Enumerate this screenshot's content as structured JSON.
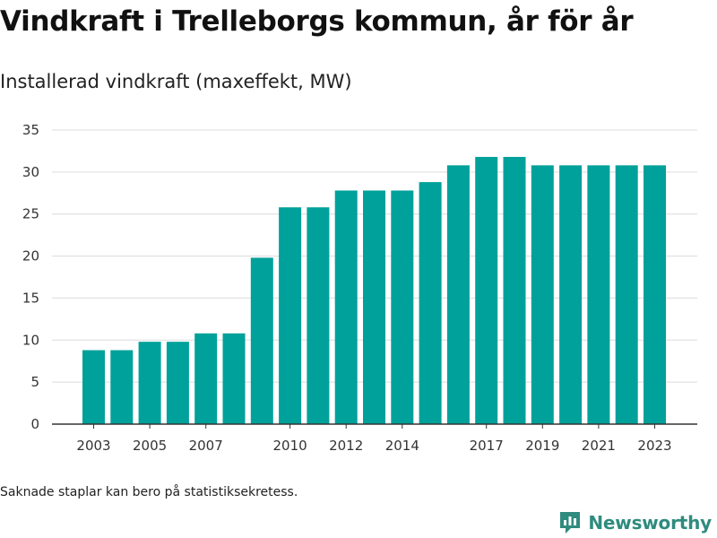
{
  "chart_data": {
    "type": "bar",
    "title": "Vindkraft i Trelleborgs kommun, år för år",
    "subtitle": "Installerad vindkraft (maxeffekt, MW)",
    "categories": [
      "2003",
      "2004",
      "2005",
      "2006",
      "2007",
      "2008",
      "2009",
      "2010",
      "2011",
      "2012",
      "2013",
      "2014",
      "2015",
      "2016",
      "2017",
      "2018",
      "2019",
      "2020",
      "2021",
      "2022",
      "2023"
    ],
    "values": [
      8.8,
      8.8,
      9.8,
      9.8,
      10.8,
      10.8,
      19.8,
      25.8,
      25.8,
      27.8,
      27.8,
      27.8,
      28.8,
      30.8,
      31.8,
      31.8,
      30.8,
      30.8,
      30.8,
      30.8,
      30.8
    ],
    "x_tick_labels": [
      "2003",
      "2005",
      "2007",
      "2010",
      "2012",
      "2014",
      "2017",
      "2019",
      "2021",
      "2023"
    ],
    "y_ticks": [
      0,
      5,
      10,
      15,
      20,
      25,
      30,
      35
    ],
    "ylim": [
      0,
      35
    ],
    "xlabel": "",
    "ylabel": "",
    "grid": true,
    "bar_color": "#00a19a"
  },
  "footnote": "Saknade staplar kan bero på statistiksekretess.",
  "brand": {
    "name": "Newsworthy",
    "icon": "newsworthy-logo-icon",
    "color": "#2e8b7e"
  }
}
